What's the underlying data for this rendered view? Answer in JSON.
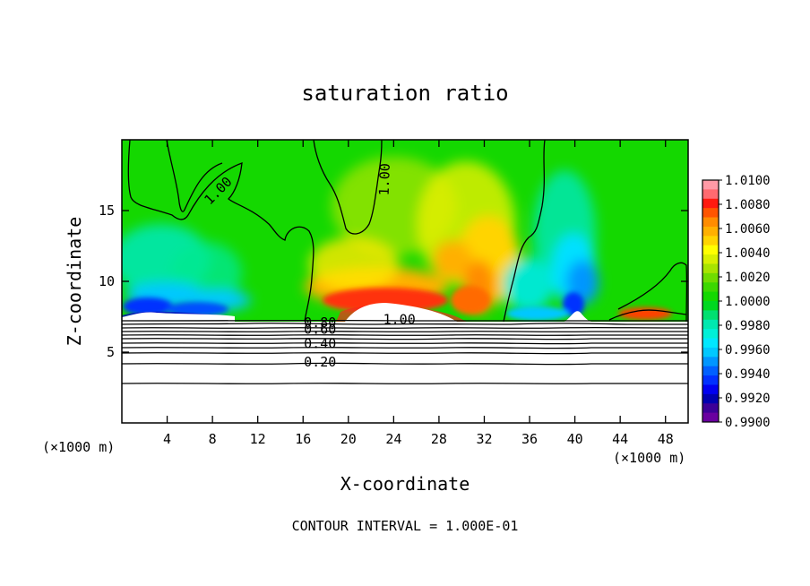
{
  "chart_data": {
    "type": "heatmap",
    "title": "saturation ratio",
    "xlabel": "X-coordinate",
    "ylabel": "Z-coordinate",
    "x_unit_left": "(×1000 m)",
    "x_unit_right": "(×1000 m)",
    "xlim": [
      0,
      50
    ],
    "ylim": [
      0,
      20
    ],
    "x_ticks": [
      4,
      8,
      12,
      16,
      20,
      24,
      28,
      32,
      36,
      40,
      44,
      48
    ],
    "y_ticks": [
      5,
      10,
      15
    ],
    "footer": "CONTOUR INTERVAL = 1.000E-01",
    "colorbar": {
      "labels": [
        "1.0100",
        "1.0080",
        "1.0060",
        "1.0040",
        "1.0020",
        "1.0000",
        "0.9980",
        "0.9960",
        "0.9940",
        "0.9920",
        "0.9900"
      ],
      "colors": [
        "#ff9aa6",
        "#ff6a70",
        "#ff1a10",
        "#ff5500",
        "#ff8c00",
        "#ffb000",
        "#ffd400",
        "#ffff00",
        "#d8f000",
        "#a8e400",
        "#70dc00",
        "#3cd800",
        "#14d800",
        "#00d820",
        "#00e070",
        "#00e8b0",
        "#00f0d8",
        "#00e8ff",
        "#00c8ff",
        "#0096ff",
        "#0060ff",
        "#0030ff",
        "#0000f0",
        "#0000b0",
        "#3c0098",
        "#6a00a0"
      ]
    },
    "contour_labels": [
      {
        "text": "1.00",
        "x": 8.5,
        "z": 16.4,
        "angle": -45
      },
      {
        "text": "1.00",
        "x": 23.2,
        "z": 17.2,
        "angle": -88
      },
      {
        "text": "1.00",
        "x": 24.5,
        "z": 7.3,
        "angle": 0
      },
      {
        "text": "0.80",
        "x": 17.5,
        "z": 7.1,
        "angle": 0
      },
      {
        "text": "0.60",
        "x": 17.5,
        "z": 6.6,
        "angle": 0
      },
      {
        "text": "0.40",
        "x": 17.5,
        "z": 5.6,
        "angle": 0
      },
      {
        "text": "0.20",
        "x": 17.5,
        "z": 4.3,
        "angle": 0
      }
    ]
  }
}
